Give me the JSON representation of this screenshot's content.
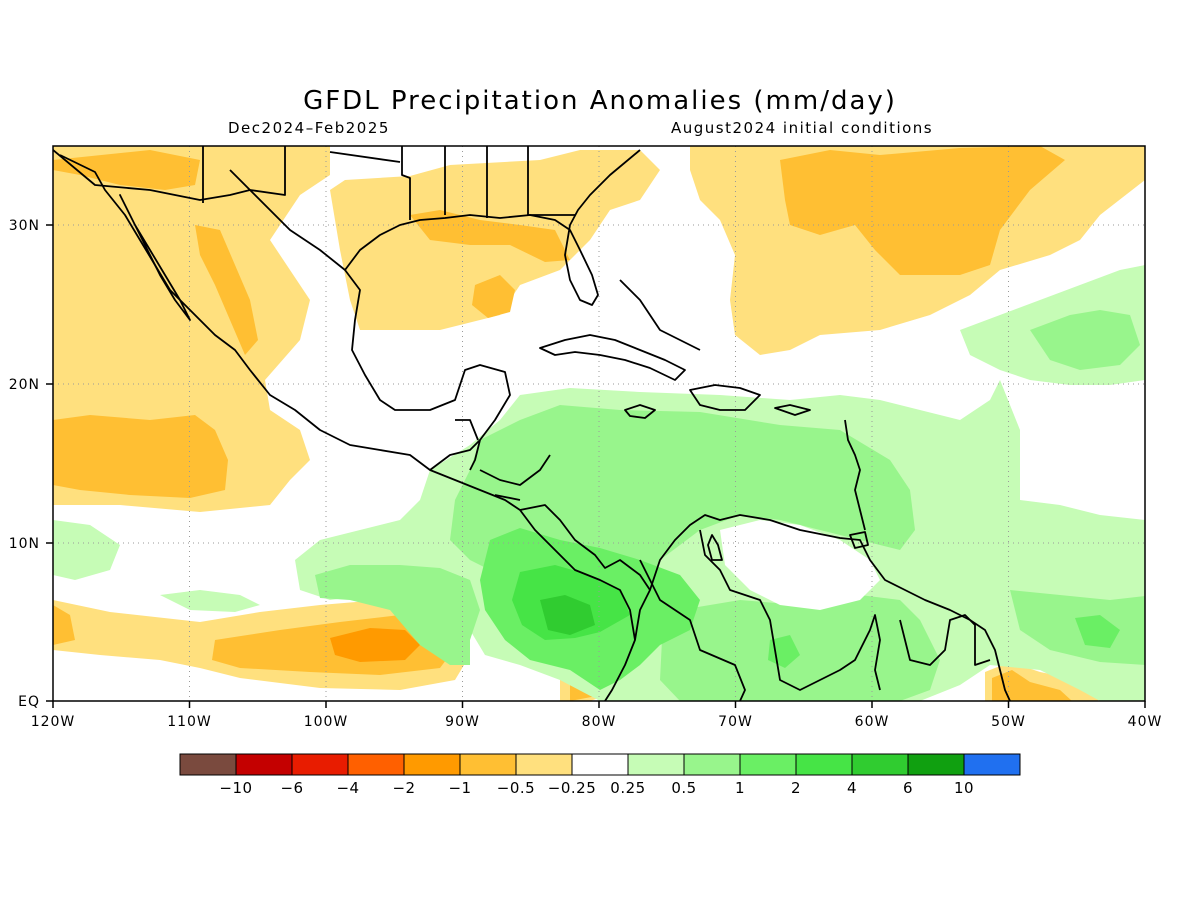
{
  "title": "GFDL Precipitation Anomalies (mm/day)",
  "period": "Dec2024–Feb2025",
  "init": "August2024 initial conditions",
  "map": {
    "lat_labels": [
      "30N",
      "20N",
      "10N",
      "EQ"
    ],
    "lon_labels": [
      "120W",
      "110W",
      "100W",
      "90W",
      "80W",
      "70W",
      "60W",
      "50W",
      "40W"
    ],
    "lon_range": [
      -120,
      -40
    ],
    "lat_range": [
      0,
      35
    ]
  },
  "legend": {
    "bins": [
      {
        "color": "#7a4a3e"
      },
      {
        "color": "#c40000"
      },
      {
        "color": "#e81c00"
      },
      {
        "color": "#ff6000"
      },
      {
        "color": "#ff9a00"
      },
      {
        "color": "#ffbf33"
      },
      {
        "color": "#ffe07e"
      },
      {
        "color": "#ffffff"
      },
      {
        "color": "#c6fcb6"
      },
      {
        "color": "#98f58c"
      },
      {
        "color": "#6aef64"
      },
      {
        "color": "#46e446"
      },
      {
        "color": "#30cc30"
      },
      {
        "color": "#10a010"
      },
      {
        "color": "#2070f0"
      }
    ],
    "labels": [
      "-10",
      "-6",
      "-4",
      "-2",
      "-1",
      "-0.5",
      "-0.25",
      "0.25",
      "0.5",
      "1",
      "2",
      "4",
      "6",
      "10"
    ]
  }
}
